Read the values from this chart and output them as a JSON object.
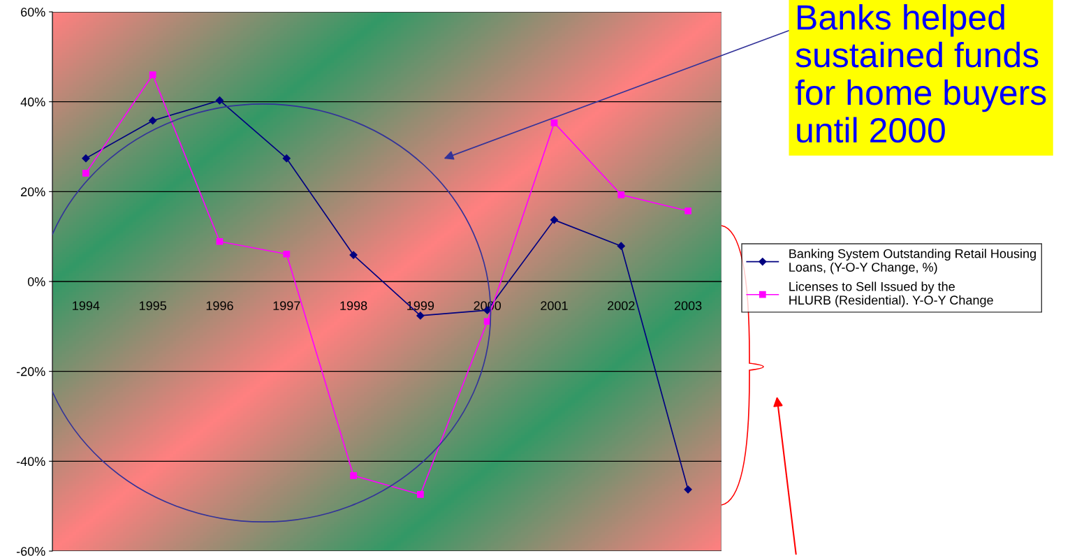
{
  "chart_data": {
    "type": "line",
    "categories": [
      "1994",
      "1995",
      "1996",
      "1997",
      "1998",
      "1999",
      "2000",
      "2001",
      "2002",
      "2003"
    ],
    "series": [
      {
        "name": "Banking System Outstanding Retail Housing Loans, (Y-O-Y Change, %)",
        "color": "#000080",
        "marker": "diamond",
        "values": [
          27.4,
          35.8,
          40.3,
          27.4,
          5.9,
          -7.6,
          -6.4,
          13.7,
          7.9,
          -46.3
        ]
      },
      {
        "name": "Licenses to Sell Issued by the HLURB (Residential). Y-O-Y Change",
        "color": "#ff00ff",
        "marker": "square",
        "values": [
          24.1,
          46.0,
          8.9,
          6.1,
          -43.2,
          -47.4,
          -8.9,
          35.3,
          19.3,
          15.7
        ]
      }
    ],
    "ylim": [
      -60,
      60
    ],
    "yticks": [
      {
        "value": -60,
        "label": "-60%"
      },
      {
        "value": -40,
        "label": "-40%"
      },
      {
        "value": -20,
        "label": "-20%"
      },
      {
        "value": 0,
        "label": "0%"
      },
      {
        "value": 20,
        "label": "20%"
      },
      {
        "value": 40,
        "label": "40%"
      },
      {
        "value": 60,
        "label": "60%"
      }
    ],
    "grid": "y",
    "legend": "right",
    "line_style": "solid",
    "annotations": [
      "Banks helped sustained funds for home buyers until 2000"
    ]
  }
}
